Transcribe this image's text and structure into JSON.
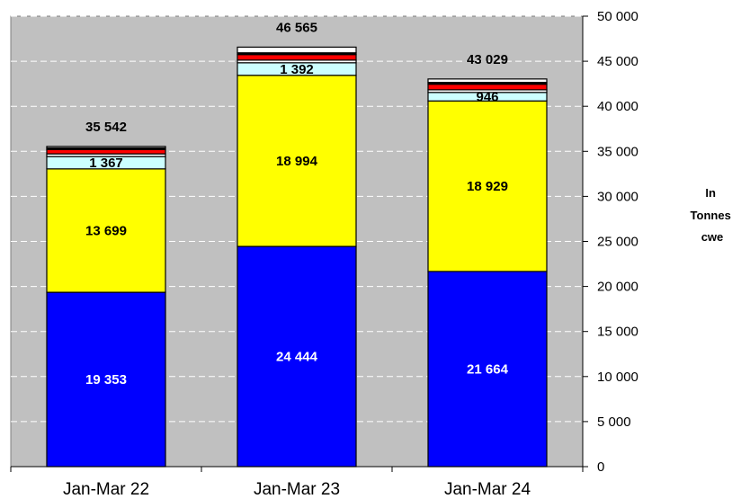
{
  "chart_data": {
    "type": "bar",
    "stacked": true,
    "categories": [
      "Jan-Mar 22",
      "Jan-Mar 23",
      "Jan-Mar 24"
    ],
    "series": [
      {
        "color": "#0000FF",
        "values": [
          19353,
          24444,
          21664
        ],
        "labels": [
          "19 353",
          "24 444",
          "21 664"
        ]
      },
      {
        "color": "#FFFF00",
        "values": [
          13699,
          18994,
          18929
        ],
        "labels": [
          "13 699",
          "18 994",
          "18 929"
        ]
      },
      {
        "color": "#CCFFFF",
        "values": [
          1367,
          1392,
          946
        ],
        "labels": [
          "1 367",
          "1 392",
          "946"
        ]
      },
      {
        "color": "#FFFFFF",
        "values": [
          300,
          300,
          290
        ]
      },
      {
        "color": "#FF0000",
        "values": [
          480,
          610,
          620
        ]
      },
      {
        "color": "#000000",
        "values": [
          180,
          195,
          200
        ]
      },
      {
        "color": "#FFFFFF",
        "values": [
          163,
          630,
          380
        ]
      }
    ],
    "totals": [
      35542,
      46565,
      43029
    ],
    "total_labels": [
      "35 542",
      "46 565",
      "43 029"
    ],
    "ylim": [
      0,
      50000
    ],
    "ytick_values": [
      0,
      5000,
      10000,
      15000,
      20000,
      25000,
      30000,
      35000,
      40000,
      45000,
      50000
    ],
    "ytick_labels": [
      "0",
      "5 000",
      "10 000",
      "15 000",
      "20 000",
      "25 000",
      "30 000",
      "35 000",
      "40 000",
      "45 000",
      "50 000"
    ],
    "y_axis_position": "right",
    "ylabel": [
      "In",
      "Tonnes",
      "cwe"
    ],
    "grid": true,
    "plot_background": "#C0C0C0",
    "legend": "none"
  }
}
